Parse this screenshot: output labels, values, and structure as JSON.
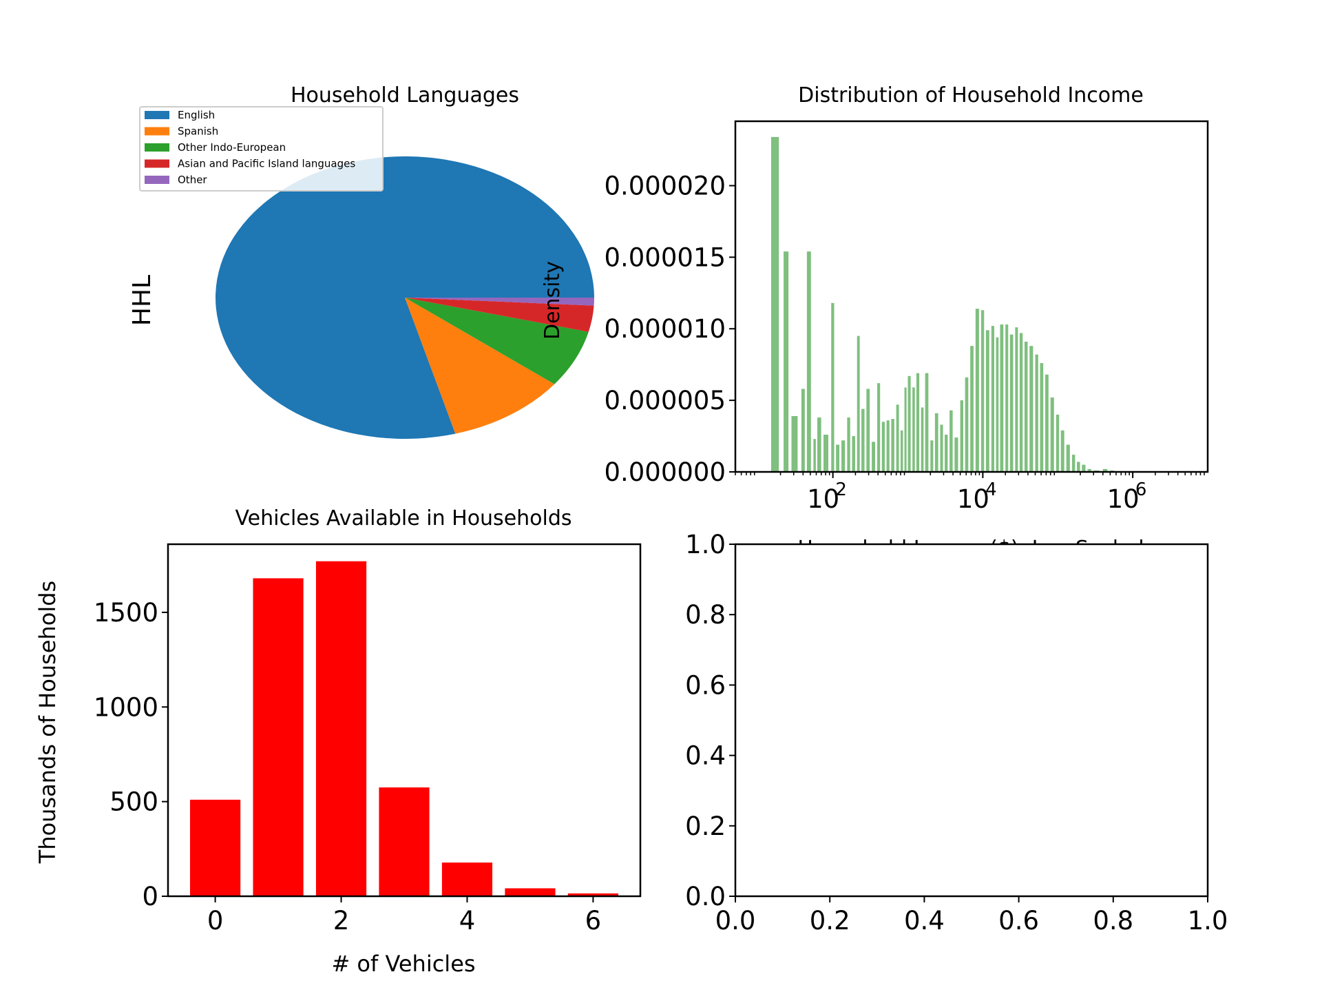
{
  "chart_data": [
    {
      "type": "pie",
      "title": "Household Languages",
      "ylabel": "HHL",
      "legend_placement": "upper-left",
      "categories": [
        "English",
        "Spanish",
        "Other Indo-European",
        "Asian and Pacific Island languages",
        "Other"
      ],
      "values": [
        79.3,
        10.2,
        6.6,
        3.0,
        0.9
      ],
      "colors": [
        "#1f77b4",
        "#ff7f0e",
        "#2ca02c",
        "#d62728",
        "#9467bd"
      ]
    },
    {
      "type": "bar",
      "title": "Distribution of Household Income",
      "xlabel": "Household Income($), Log Scaled",
      "ylabel": "Density",
      "x_scale": "log",
      "xlim": [
        5,
        10000000
      ],
      "ylim": [
        0,
        2.45e-05
      ],
      "xticks": [
        "10^2",
        "10^4",
        "10^6"
      ],
      "yticks": [
        "0.000000",
        "0.000005",
        "0.000010",
        "0.000015",
        "0.000020"
      ],
      "color": "#7fbf7f",
      "grid": false,
      "bins": [
        [
          15,
          2.34e-05
        ],
        [
          22,
          1.54e-05
        ],
        [
          28,
          3.9e-06
        ],
        [
          38,
          5.8e-06
        ],
        [
          45,
          1.54e-05
        ],
        [
          55,
          2.3e-06
        ],
        [
          62,
          3.8e-06
        ],
        [
          75,
          2.6e-06
        ],
        [
          95,
          1.18e-05
        ],
        [
          110,
          1.9e-06
        ],
        [
          130,
          2.2e-06
        ],
        [
          155,
          3.8e-06
        ],
        [
          180,
          2.5e-06
        ],
        [
          210,
          9.5e-06
        ],
        [
          240,
          4.4e-06
        ],
        [
          280,
          5.8e-06
        ],
        [
          330,
          2.1e-06
        ],
        [
          390,
          6.2e-06
        ],
        [
          450,
          3.5e-06
        ],
        [
          520,
          3.6e-06
        ],
        [
          600,
          3.7e-06
        ],
        [
          700,
          4.7e-06
        ],
        [
          800,
          2.9e-06
        ],
        [
          900,
          5.9e-06
        ],
        [
          1000,
          6.7e-06
        ],
        [
          1150,
          5.9e-06
        ],
        [
          1300,
          6.9e-06
        ],
        [
          1500,
          4.5e-06
        ],
        [
          1700,
          6.9e-06
        ],
        [
          2000,
          2.2e-06
        ],
        [
          2300,
          4.1e-06
        ],
        [
          2700,
          3.3e-06
        ],
        [
          3100,
          2.6e-06
        ],
        [
          3600,
          4.3e-06
        ],
        [
          4200,
          2.4e-06
        ],
        [
          5000,
          5e-06
        ],
        [
          5800,
          6.6e-06
        ],
        [
          6800,
          8.8e-06
        ],
        [
          8000,
          1.14e-05
        ],
        [
          9500,
          1.13e-05
        ],
        [
          11000,
          9.9e-06
        ],
        [
          13000,
          1.02e-05
        ],
        [
          15000,
          9.4e-06
        ],
        [
          17000,
          1.03e-05
        ],
        [
          20000,
          1.03e-05
        ],
        [
          23000,
          9.6e-06
        ],
        [
          27000,
          1.01e-05
        ],
        [
          31000,
          9.7e-06
        ],
        [
          36000,
          9.1e-06
        ],
        [
          42000,
          8.8e-06
        ],
        [
          50000,
          8.2e-06
        ],
        [
          58000,
          7.6e-06
        ],
        [
          68000,
          6.8e-06
        ],
        [
          80000,
          5.2e-06
        ],
        [
          95000,
          4e-06
        ],
        [
          110000,
          2.9e-06
        ],
        [
          130000,
          1.9e-06
        ],
        [
          155000,
          1.2e-06
        ],
        [
          180000,
          7e-07
        ],
        [
          210000,
          5e-07
        ],
        [
          250000,
          2e-07
        ],
        [
          300000,
          1e-07
        ],
        [
          400000,
          2e-07
        ],
        [
          500000,
          1e-07
        ]
      ]
    },
    {
      "type": "bar",
      "title": "Vehicles Available in Households",
      "xlabel": "# of Vehicles",
      "ylabel": "Thousands of Households",
      "categories": [
        0,
        1,
        2,
        3,
        4,
        5,
        6
      ],
      "values": [
        510,
        1680,
        1770,
        575,
        178,
        42,
        15
      ],
      "xlim": [
        -0.75,
        6.75
      ],
      "ylim": [
        0,
        1860
      ],
      "xticks": [
        "0",
        "2",
        "4",
        "6"
      ],
      "yticks": [
        "0",
        "500",
        "1000",
        "1500"
      ],
      "color": "#ff0000",
      "grid": false
    },
    {
      "type": "scatter",
      "title": "",
      "xlim": [
        0,
        1
      ],
      "ylim": [
        0,
        1
      ],
      "xticks": [
        "0.0",
        "0.2",
        "0.4",
        "0.6",
        "0.8",
        "1.0"
      ],
      "yticks": [
        "0.0",
        "0.2",
        "0.4",
        "0.6",
        "0.8",
        "1.0"
      ],
      "values": []
    }
  ]
}
